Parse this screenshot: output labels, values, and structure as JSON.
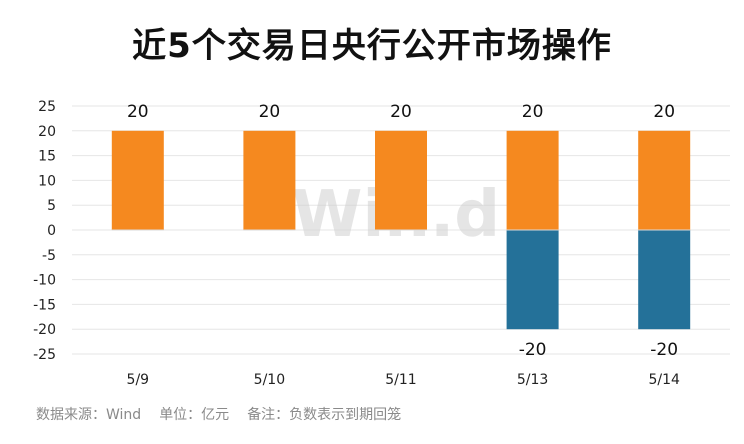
{
  "chart_data": {
    "type": "bar",
    "title": "近5个交易日央行公开市场操作",
    "categories": [
      "5/9",
      "5/10",
      "5/11",
      "5/13",
      "5/14"
    ],
    "series": [
      {
        "values": [
          20,
          20,
          20,
          20,
          20
        ],
        "color": "#f5891f"
      },
      {
        "values": [
          0,
          0,
          0,
          -20,
          -20
        ],
        "color": "#247199"
      }
    ],
    "data_labels": {
      "positive": [
        "20",
        "20",
        "20",
        "20",
        "20"
      ],
      "negative": [
        "",
        "",
        "",
        "-20",
        "-20"
      ]
    },
    "y_ticks": [
      "25",
      "20",
      "15",
      "10",
      "5",
      "0",
      "-5",
      "-10",
      "-15",
      "-20",
      "-25"
    ],
    "ylim": [
      -25,
      25
    ],
    "xlabel": "",
    "ylabel": "",
    "stacked": true,
    "grid": true,
    "legend": "none"
  },
  "watermark": "Win.d",
  "footer": {
    "source": "数据来源：Wind",
    "unit": "单位：亿元",
    "note": "备注：负数表示到期回笼"
  }
}
